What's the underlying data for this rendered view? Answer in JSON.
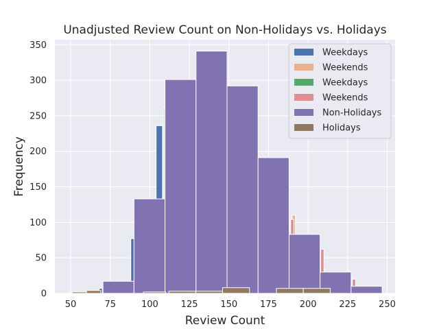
{
  "chart_data": {
    "type": "bar",
    "title": "Unadjusted Review Count on Non-Holidays vs. Holidays",
    "xlabel": "Review Count",
    "ylabel": "Frequency",
    "xlim": [
      40,
      255
    ],
    "ylim": [
      0,
      357
    ],
    "xticks": [
      50,
      75,
      100,
      125,
      150,
      175,
      200,
      225,
      250
    ],
    "yticks": [
      0,
      50,
      100,
      150,
      200,
      250,
      300,
      350
    ],
    "grid": true,
    "legend_position": "top-right",
    "series": [
      {
        "name": "Weekdays",
        "color": "#4c72b0",
        "bins": [
          {
            "x0": 68,
            "x1": 70,
            "count": 7
          },
          {
            "x0": 88,
            "x1": 90,
            "count": 77
          },
          {
            "x0": 104,
            "x1": 108,
            "count": 236
          }
        ]
      },
      {
        "name": "Weekends",
        "color": "#e8b08f",
        "bins": [
          {
            "x0": 190,
            "x1": 192,
            "count": 110
          }
        ]
      },
      {
        "name": "Weekdays",
        "color": "#55a868",
        "bins": [
          {
            "x0": 109,
            "x1": 110,
            "count": 262
          }
        ]
      },
      {
        "name": "Weekends",
        "color": "#dd8f8f",
        "bins": [
          {
            "x0": 189,
            "x1": 191,
            "count": 104
          },
          {
            "x0": 208,
            "x1": 210,
            "count": 62
          },
          {
            "x0": 228,
            "x1": 230,
            "count": 20
          }
        ]
      },
      {
        "name": "Non-Holidays",
        "color": "#8172b2",
        "bins": [
          {
            "x0": 70.4,
            "x1": 90.0,
            "count": 17
          },
          {
            "x0": 90.0,
            "x1": 109.6,
            "count": 133
          },
          {
            "x0": 109.6,
            "x1": 129.2,
            "count": 301
          },
          {
            "x0": 129.2,
            "x1": 148.8,
            "count": 341
          },
          {
            "x0": 148.8,
            "x1": 168.4,
            "count": 292
          },
          {
            "x0": 168.4,
            "x1": 188.0,
            "count": 191
          },
          {
            "x0": 188.0,
            "x1": 207.6,
            "count": 83
          },
          {
            "x0": 207.6,
            "x1": 227.2,
            "count": 30
          },
          {
            "x0": 227.2,
            "x1": 246.8,
            "count": 10
          }
        ]
      },
      {
        "name": "Holidays",
        "color": "#937860",
        "bins": [
          {
            "x0": 51.0,
            "x1": 60.0,
            "count": 2
          },
          {
            "x0": 60.0,
            "x1": 69.0,
            "count": 4
          },
          {
            "x0": 96.0,
            "x1": 110.0,
            "count": 2
          },
          {
            "x0": 112.0,
            "x1": 129.0,
            "count": 3
          },
          {
            "x0": 129.0,
            "x1": 146.0,
            "count": 3
          },
          {
            "x0": 146.0,
            "x1": 163.0,
            "count": 8
          },
          {
            "x0": 180.0,
            "x1": 197.0,
            "count": 7
          },
          {
            "x0": 197.0,
            "x1": 214.0,
            "count": 7
          }
        ]
      }
    ]
  }
}
